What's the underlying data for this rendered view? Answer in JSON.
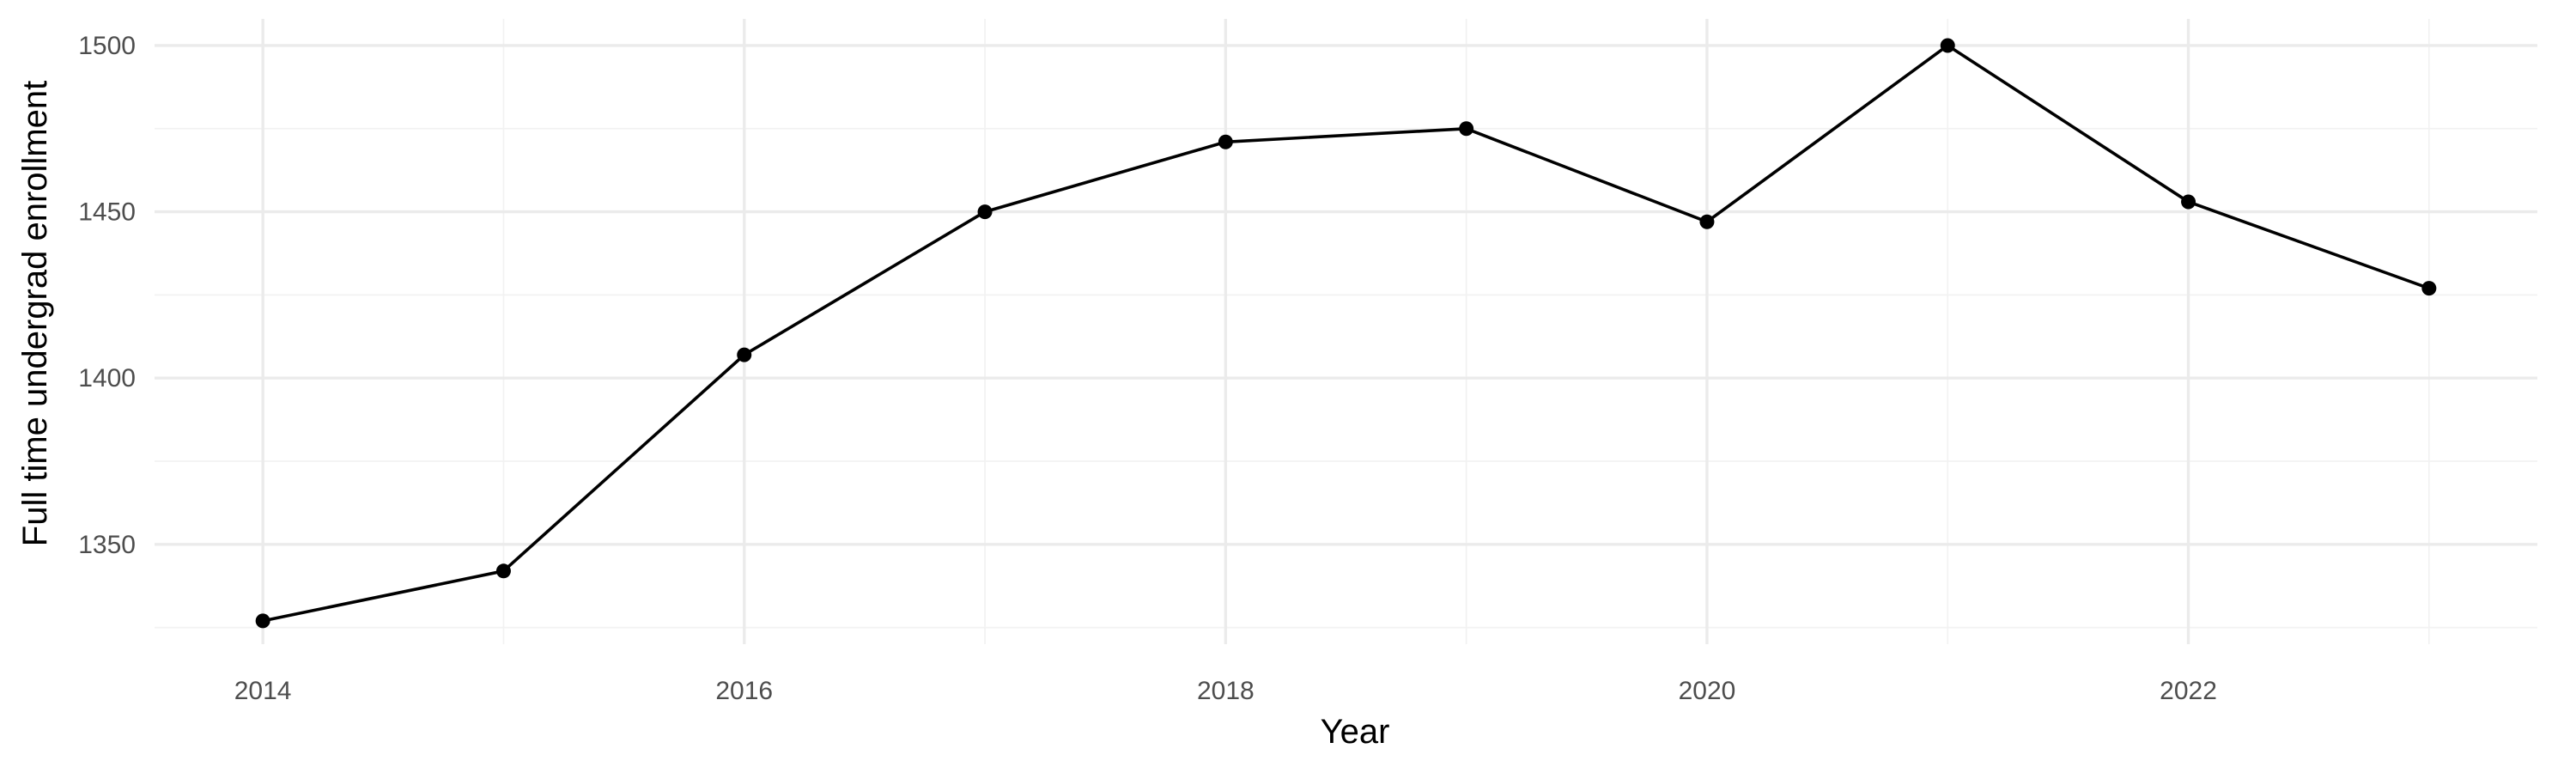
{
  "chart_data": {
    "type": "line",
    "title": "",
    "xlabel": "Year",
    "ylabel": "Full time undergrad enrollment",
    "x": [
      2014,
      2015,
      2016,
      2017,
      2018,
      2019,
      2020,
      2021,
      2022,
      2023
    ],
    "series": [
      {
        "values": [
          1327,
          1342,
          1407,
          1450,
          1471,
          1475,
          1447,
          1500,
          1453,
          1427
        ]
      }
    ],
    "xlim": [
      2013.55,
      2023.45
    ],
    "ylim": [
      1320,
      1508
    ],
    "x_ticks": [
      2014,
      2016,
      2018,
      2020,
      2022
    ],
    "x_tick_labels": [
      "2014",
      "2016",
      "2018",
      "2020",
      "2022"
    ],
    "x_minor_ticks": [
      2015,
      2017,
      2019,
      2021,
      2023
    ],
    "y_ticks": [
      1350,
      1400,
      1450,
      1500
    ],
    "y_tick_labels": [
      "1350",
      "1400",
      "1450",
      "1500"
    ],
    "y_minor_ticks": [
      1325,
      1375,
      1425,
      1475
    ],
    "grid": true,
    "legend": "none",
    "colors": {
      "line": "#000000",
      "point": "#000000",
      "grid_major": "#ebebeb",
      "grid_minor": "#f2f2f2",
      "tick_text": "#4d4d4d",
      "background": "#ffffff"
    }
  }
}
